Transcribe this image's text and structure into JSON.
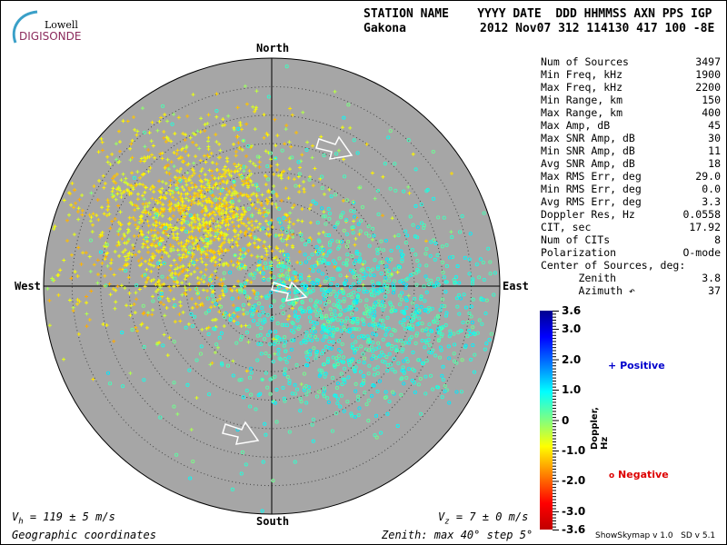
{
  "logo": {
    "line1": "Lowell",
    "line2": "DIGISONDE"
  },
  "header": {
    "labels": "STATION NAME    YYYY DATE  DDD HHMMSS AXN PPS IGP",
    "station": "Gakona",
    "values": "2012 Nov07 312 114130 417 100 -8E"
  },
  "stats": [
    {
      "label": "Num of Sources",
      "value": "3497"
    },
    {
      "label": "Min Freq, kHz",
      "value": "1900"
    },
    {
      "label": "Max Freq, kHz",
      "value": "2200"
    },
    {
      "label": "Min Range, km",
      "value": "150"
    },
    {
      "label": "Max Range, km",
      "value": "400"
    },
    {
      "label": "Max Amp, dB",
      "value": "45"
    },
    {
      "label": "Max SNR Amp, dB",
      "value": "30"
    },
    {
      "label": "Min SNR Amp, dB",
      "value": "11"
    },
    {
      "label": "Avg SNR Amp, dB",
      "value": "18"
    },
    {
      "label": "Max RMS Err, deg",
      "value": "29.0"
    },
    {
      "label": "Min RMS Err, deg",
      "value": "0.0"
    },
    {
      "label": "Avg RMS Err, deg",
      "value": "3.3"
    },
    {
      "label": "Doppler Res, Hz",
      "value": "0.0558"
    },
    {
      "label": "CIT, sec",
      "value": "17.92"
    },
    {
      "label": "Num of CITs",
      "value": "8"
    },
    {
      "label": "Polarization",
      "value": "O-mode"
    },
    {
      "label": "Center of Sources, deg:",
      "value": ""
    },
    {
      "label": "      Zenith",
      "value": "3.8"
    },
    {
      "label": "      Azimuth ↶",
      "value": "37"
    }
  ],
  "directions": {
    "north": "North",
    "south": "South",
    "east": "East",
    "west": "West"
  },
  "footer": {
    "vh_sym": "V",
    "vh_sub": "h",
    "vh_text": " = 119 ± 5 m/s",
    "vz_sym": "V",
    "vz_sub": "z",
    "vz_text": " = 7 ± 0 m/s",
    "coords": "Geographic coordinates",
    "zenith": "Zenith: max 40°  step 5°",
    "version": "ShowSkymap v 1.0   SD v 5.1"
  },
  "legend": {
    "positive_symbol": "+",
    "positive": "Positive",
    "negative_symbol": "o",
    "negative": "Negative",
    "positive_color": "#0000cc",
    "negative_color": "#dd0000"
  },
  "chart_data": {
    "type": "scatter",
    "projection": "polar skymap",
    "zenith_max_deg": 40,
    "zenith_step_deg": 5,
    "colorbar": {
      "label": "Doppler, Hz",
      "range": [
        -3.6,
        3.6
      ],
      "ticks": [
        "3.6",
        "3.0",
        "2.0",
        "1.0",
        "0",
        "-1.0",
        "-2.0",
        "-3.0",
        "-3.6"
      ],
      "colormap": "jet"
    },
    "series": [
      {
        "name": "Positive",
        "marker": "+",
        "region": "north-west, centred near zenith 20°",
        "doppler_range": [
          0,
          2
        ]
      },
      {
        "name": "Negative",
        "marker": "o",
        "region": "east / south-east",
        "doppler_range": [
          -1.5,
          0
        ]
      }
    ],
    "plot_bg": "#a6a6a6"
  }
}
